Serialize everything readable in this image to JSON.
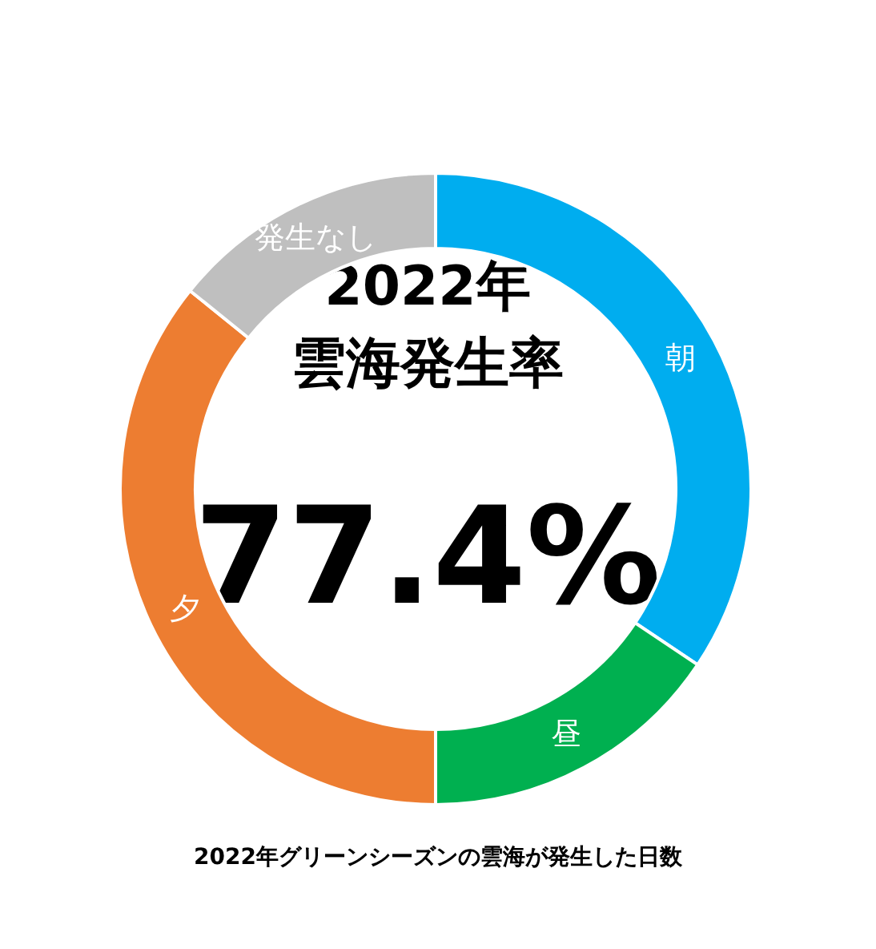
{
  "chart_data": {
    "type": "donut",
    "title": "2022年",
    "subtitle": "雲海発生率",
    "categories": [
      "朝",
      "昼",
      "夕",
      "発生なし"
    ],
    "values": [
      34.4,
      15.6,
      35.8,
      14.2
    ],
    "colors": [
      "#00adef",
      "#00b050",
      "#ed7d31",
      "#bfbfbf"
    ],
    "annotations": [
      "77.4%",
      "2022年グリーンシーズンの雲海が発生した日数"
    ]
  }
}
